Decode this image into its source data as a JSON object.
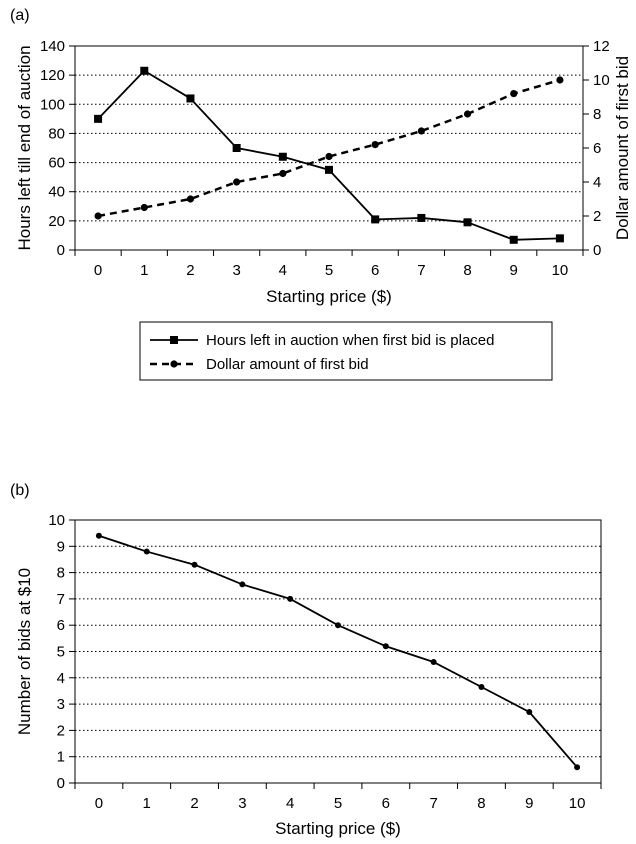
{
  "chart_data": [
    {
      "type": "line",
      "panel_label": "(a)",
      "x": [
        0,
        1,
        2,
        3,
        4,
        5,
        6,
        7,
        8,
        9,
        10
      ],
      "xlabel": "Starting price ($)",
      "ylabel": "Hours left till end of auction",
      "y2label": "Dollar amount of first bid",
      "xlim": [
        -0.5,
        10.5
      ],
      "ylim": [
        0,
        140
      ],
      "y2lim": [
        0,
        12
      ],
      "xticks": [
        "0",
        "1",
        "2",
        "3",
        "4",
        "5",
        "6",
        "7",
        "8",
        "9",
        "10"
      ],
      "yticks": [
        "0",
        "20",
        "40",
        "60",
        "80",
        "100",
        "120",
        "140"
      ],
      "y2ticks": [
        "0",
        "2",
        "4",
        "6",
        "8",
        "10",
        "12"
      ],
      "grid": "horizontal dotted",
      "legend_placement": "below",
      "series": [
        {
          "name": "Hours left in auction when first bid is placed",
          "axis": "left",
          "style": "solid",
          "marker": "square",
          "values": [
            90,
            123,
            104,
            70,
            64,
            55,
            21,
            22,
            19,
            7,
            8
          ]
        },
        {
          "name": "Dollar amount of first bid",
          "axis": "right",
          "style": "dashed",
          "marker": "circle",
          "values": [
            2.0,
            2.5,
            3.0,
            4.0,
            4.5,
            5.5,
            6.2,
            7.0,
            8.0,
            9.2,
            10.0
          ]
        }
      ]
    },
    {
      "type": "line",
      "panel_label": "(b)",
      "x": [
        0,
        1,
        2,
        3,
        4,
        5,
        6,
        7,
        8,
        9,
        10
      ],
      "xlabel": "Starting price ($)",
      "ylabel": "Number of bids at $10",
      "xlim": [
        -0.5,
        10.5
      ],
      "ylim": [
        0,
        10
      ],
      "xticks": [
        "0",
        "1",
        "2",
        "3",
        "4",
        "5",
        "6",
        "7",
        "8",
        "9",
        "10"
      ],
      "yticks": [
        "0",
        "1",
        "2",
        "3",
        "4",
        "5",
        "6",
        "7",
        "8",
        "9",
        "10"
      ],
      "grid": "horizontal dotted",
      "series": [
        {
          "axis": "left",
          "style": "solid",
          "marker": "circle",
          "values": [
            9.4,
            8.8,
            8.3,
            7.55,
            7.0,
            6.0,
            5.2,
            4.6,
            3.65,
            2.7,
            0.6
          ]
        }
      ]
    }
  ]
}
